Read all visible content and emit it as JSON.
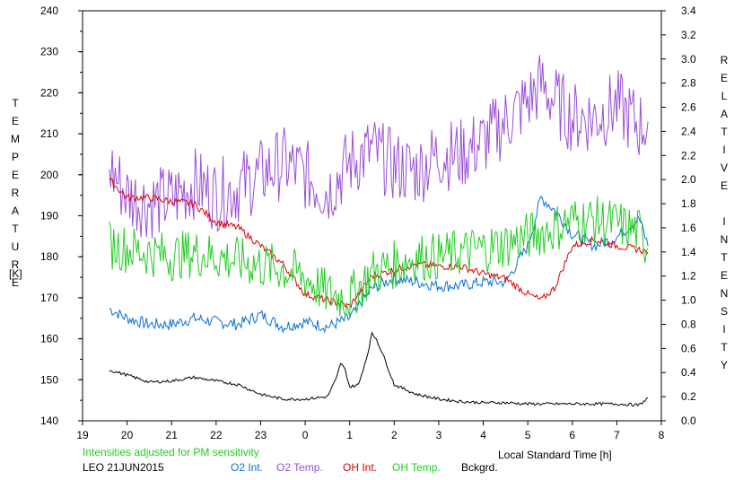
{
  "chart_data": {
    "type": "line",
    "xlabel": "Local Standard Time [h]",
    "ylabel_left": "TEMPERATURE",
    "ylabel_left_unit": "[K]",
    "ylabel_right": "RELATIVE INTENSITY",
    "xlim": [
      19,
      8
    ],
    "x_ticks": [
      "19",
      "20",
      "21",
      "22",
      "23",
      "0",
      "1",
      "2",
      "3",
      "4",
      "5",
      "6",
      "7",
      "8"
    ],
    "ylim_left": [
      140,
      240
    ],
    "y_ticks_left": [
      "240",
      "230",
      "220",
      "210",
      "200",
      "190",
      "180",
      "170",
      "160",
      "150",
      "140"
    ],
    "ylim_right": [
      0.0,
      3.4
    ],
    "y_ticks_right": [
      "3.4",
      "3.2",
      "3.0",
      "2.8",
      "2.6",
      "2.4",
      "2.2",
      "2.0",
      "1.8",
      "1.6",
      "1.4",
      "1.2",
      "1.0",
      "0.8",
      "0.6",
      "0.4",
      "0.2",
      "0.0"
    ],
    "note": "Intensities adjusted for PM sensitivity",
    "station_date": "LEO 21JUN2015",
    "series": [
      {
        "name": "O2 Int.",
        "color": "#0a6fd8",
        "axis": "right",
        "x": [
          19.6,
          20.0,
          20.5,
          21.0,
          21.5,
          22.0,
          22.5,
          23.0,
          23.5,
          0.0,
          0.5,
          1.0,
          1.5,
          2.0,
          2.5,
          3.0,
          3.5,
          4.0,
          4.5,
          5.0,
          5.3,
          5.6,
          6.0,
          6.5,
          7.0,
          7.5,
          7.7
        ],
        "y": [
          0.93,
          0.85,
          0.8,
          0.8,
          0.85,
          0.82,
          0.8,
          0.88,
          0.78,
          0.82,
          0.78,
          0.85,
          1.1,
          1.18,
          1.15,
          1.12,
          1.12,
          1.15,
          1.15,
          1.45,
          1.85,
          1.75,
          1.55,
          1.45,
          1.52,
          1.68,
          1.45
        ]
      },
      {
        "name": "O2 Temp.",
        "color": "#9b4fd6",
        "axis": "left",
        "x": [
          19.6,
          20.0,
          20.5,
          21.0,
          21.5,
          22.0,
          22.5,
          23.0,
          23.5,
          0.0,
          0.5,
          1.0,
          1.5,
          2.0,
          2.5,
          3.0,
          3.5,
          4.0,
          4.5,
          5.0,
          5.3,
          5.6,
          6.0,
          6.5,
          7.0,
          7.5,
          7.7
        ],
        "y": [
          202,
          195,
          193,
          194,
          198,
          195,
          197,
          200,
          203,
          200,
          196,
          203,
          206,
          202,
          201,
          205,
          205,
          208,
          213,
          218,
          222,
          218,
          214,
          214,
          217,
          212,
          213
        ]
      },
      {
        "name": "OH Int.",
        "color": "#e00000",
        "axis": "right",
        "x": [
          19.6,
          20.0,
          20.5,
          21.0,
          21.5,
          22.0,
          22.5,
          23.0,
          23.5,
          0.0,
          0.5,
          1.0,
          1.5,
          2.0,
          2.5,
          3.0,
          3.5,
          4.0,
          4.5,
          5.0,
          5.3,
          5.6,
          6.0,
          6.5,
          7.0,
          7.5,
          7.7
        ],
        "y": [
          2.0,
          1.85,
          1.85,
          1.82,
          1.8,
          1.65,
          1.6,
          1.45,
          1.3,
          1.05,
          1.0,
          0.95,
          1.2,
          1.25,
          1.3,
          1.28,
          1.28,
          1.22,
          1.18,
          1.05,
          1.0,
          1.1,
          1.45,
          1.5,
          1.45,
          1.42,
          1.4
        ]
      },
      {
        "name": "OH Temp.",
        "color": "#22cc22",
        "axis": "left",
        "x": [
          19.6,
          20.0,
          20.5,
          21.0,
          21.5,
          22.0,
          22.5,
          23.0,
          23.5,
          0.0,
          0.5,
          1.0,
          1.5,
          2.0,
          2.5,
          3.0,
          3.5,
          4.0,
          4.5,
          5.0,
          5.3,
          5.6,
          6.0,
          6.5,
          7.0,
          7.5,
          7.7
        ],
        "y": [
          183,
          182,
          181,
          180,
          181,
          180,
          179,
          178,
          177,
          175,
          171,
          170,
          176,
          178,
          180,
          180,
          181,
          182,
          183,
          185,
          186,
          187,
          189,
          189,
          188,
          186,
          182
        ]
      },
      {
        "name": "Bckgrd.",
        "color": "#000000",
        "axis": "right",
        "x": [
          19.6,
          20.0,
          20.5,
          21.0,
          21.5,
          22.0,
          22.5,
          23.0,
          23.5,
          0.0,
          0.5,
          0.7,
          0.8,
          0.9,
          1.0,
          1.2,
          1.4,
          1.5,
          1.6,
          1.8,
          2.0,
          2.5,
          3.0,
          3.5,
          4.0,
          4.5,
          5.0,
          5.5,
          6.0,
          6.5,
          7.0,
          7.5,
          7.7
        ],
        "y": [
          0.42,
          0.38,
          0.32,
          0.33,
          0.36,
          0.33,
          0.3,
          0.22,
          0.18,
          0.18,
          0.2,
          0.35,
          0.48,
          0.42,
          0.28,
          0.3,
          0.55,
          0.72,
          0.68,
          0.5,
          0.3,
          0.22,
          0.18,
          0.16,
          0.15,
          0.15,
          0.14,
          0.14,
          0.14,
          0.14,
          0.14,
          0.13,
          0.19
        ]
      }
    ]
  }
}
